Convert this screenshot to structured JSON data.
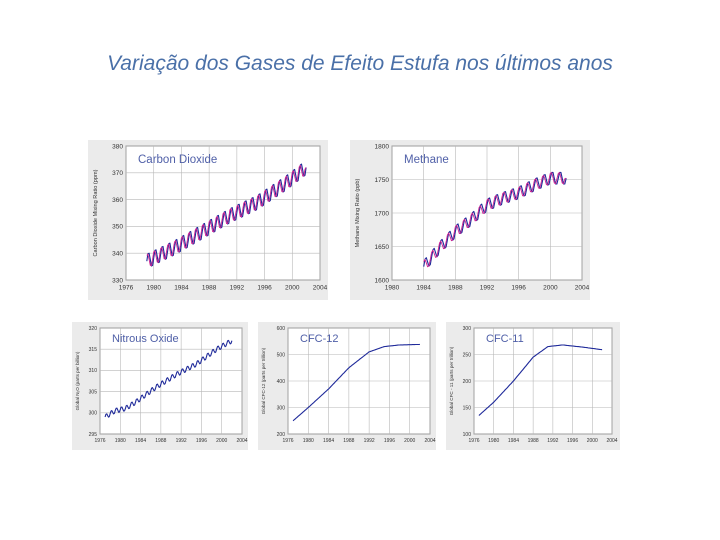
{
  "slide": {
    "title": "Variação dos Gases de Efeito Estufa nos últimos anos"
  },
  "colors": {
    "observed_line": "#1f2a9a",
    "fit_line": "#d02090",
    "grid": "#b8b8b8",
    "plot_bg": "#ffffff",
    "panel_bg": "#ebebeb",
    "label": "#5060a8"
  },
  "chart_data": [
    {
      "type": "line",
      "title": "Carbon Dioxide",
      "ylabel": "Carbon Dioxide Mixing Ratio (ppm)",
      "xlim": [
        1976,
        2004
      ],
      "ylim": [
        330,
        380
      ],
      "xticks": [
        "1976",
        "1980",
        "1984",
        "1988",
        "1992",
        "1996",
        "2000",
        "2004"
      ],
      "yticks": [
        "330",
        "340",
        "350",
        "360",
        "370",
        "380"
      ],
      "seasonal_amplitude": 3,
      "series": [
        {
          "x": [
            1979,
            1983,
            1987,
            1991,
            1995,
            1999,
            2002
          ],
          "y": [
            337,
            342,
            348,
            354,
            359,
            366,
            372
          ]
        },
        {
          "x": [
            1979,
            1983,
            1987,
            1991,
            1995,
            1999,
            2002
          ],
          "y": [
            337,
            342,
            348,
            354,
            359,
            366,
            372
          ]
        }
      ]
    },
    {
      "type": "line",
      "title": "Methane",
      "ylabel": "Methane Mixing Ratio (ppb)",
      "xlim": [
        1980,
        2004
      ],
      "ylim": [
        1600,
        1800
      ],
      "xticks": [
        "1980",
        "1984",
        "1988",
        "1992",
        "1996",
        "2000",
        "2004"
      ],
      "yticks": [
        "1600",
        "1650",
        "1700",
        "1750",
        "1800"
      ],
      "seasonal_amplitude": 10,
      "series": [
        {
          "x": [
            1984,
            1986,
            1988,
            1990,
            1992,
            1994,
            1996,
            1998,
            2000,
            2002
          ],
          "y": [
            1620,
            1648,
            1672,
            1690,
            1712,
            1722,
            1730,
            1742,
            1752,
            1752
          ]
        },
        {
          "x": [
            1984,
            1986,
            1988,
            1990,
            1992,
            1994,
            1996,
            1998,
            2000,
            2002
          ],
          "y": [
            1620,
            1648,
            1672,
            1690,
            1712,
            1722,
            1730,
            1742,
            1752,
            1752
          ]
        }
      ]
    },
    {
      "type": "line",
      "title": "Nitrous Oxide",
      "ylabel": "Global N₂O (parts per billion)",
      "xlim": [
        1976,
        2004
      ],
      "ylim": [
        295,
        320
      ],
      "xticks": [
        "1976",
        "1980",
        "1984",
        "1988",
        "1992",
        "1996",
        "2000",
        "2004"
      ],
      "yticks": [
        "295",
        "300",
        "305",
        "310",
        "315",
        "320"
      ],
      "seasonal_amplitude": 0.6,
      "series": [
        {
          "x": [
            1977,
            1979,
            1981,
            1983,
            1987,
            1991,
            1995,
            1999,
            2002
          ],
          "y": [
            299,
            300.5,
            301,
            302.5,
            306,
            309,
            311.5,
            315,
            317
          ]
        }
      ]
    },
    {
      "type": "line",
      "title": "CFC-12",
      "ylabel": "Global CFC-12 (parts per trillion)",
      "xlim": [
        1976,
        2004
      ],
      "ylim": [
        200,
        600
      ],
      "xticks": [
        "1976",
        "1980",
        "1984",
        "1988",
        "1992",
        "1996",
        "2000",
        "2004"
      ],
      "yticks": [
        "200",
        "300",
        "400",
        "500",
        "600"
      ],
      "seasonal_amplitude": 0,
      "series": [
        {
          "x": [
            1977,
            1980,
            1984,
            1988,
            1992,
            1995,
            1998,
            2002
          ],
          "y": [
            250,
            300,
            370,
            450,
            510,
            530,
            536,
            538
          ]
        }
      ]
    },
    {
      "type": "line",
      "title": "CFC-11",
      "ylabel": "Global CFC - 11 (parts per trillion)",
      "xlim": [
        1976,
        2004
      ],
      "ylim": [
        100,
        300
      ],
      "xticks": [
        "1976",
        "1980",
        "1984",
        "1988",
        "1992",
        "1996",
        "2000",
        "2004"
      ],
      "yticks": [
        "100",
        "150",
        "200",
        "250",
        "300"
      ],
      "seasonal_amplitude": 0,
      "series": [
        {
          "x": [
            1977,
            1980,
            1984,
            1988,
            1991,
            1994,
            1998,
            2002
          ],
          "y": [
            135,
            160,
            200,
            245,
            265,
            268,
            264,
            259
          ]
        }
      ]
    }
  ]
}
